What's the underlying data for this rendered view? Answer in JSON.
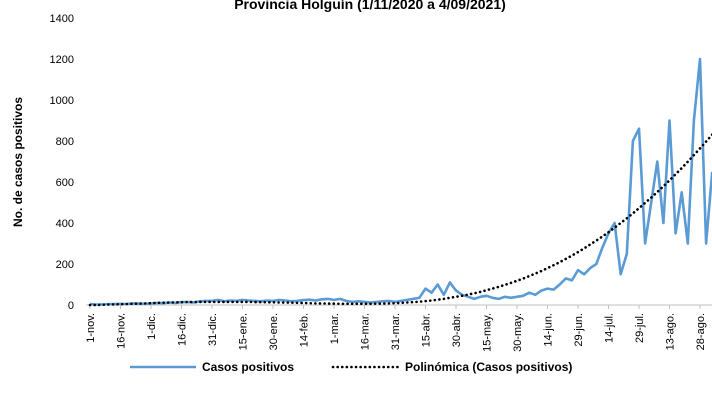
{
  "chart_data": {
    "type": "line",
    "title": "Provincia Holguín (1/11/2020 a 4/09/2021)",
    "y_label": "No. de casos positivos",
    "categories": [
      "1-nov.",
      null,
      null,
      null,
      null,
      "16-nov.",
      null,
      null,
      null,
      null,
      "1-dic.",
      null,
      null,
      null,
      null,
      "16-dic.",
      null,
      null,
      null,
      null,
      "31-dic.",
      null,
      null,
      null,
      null,
      "15-ene.",
      null,
      null,
      null,
      null,
      "30-ene.",
      null,
      null,
      null,
      null,
      "14-feb.",
      null,
      null,
      null,
      null,
      "1-mar.",
      null,
      null,
      null,
      null,
      "16-mar.",
      null,
      null,
      null,
      null,
      "31-mar.",
      null,
      null,
      null,
      null,
      "15-abr.",
      null,
      null,
      null,
      null,
      "30-abr.",
      null,
      null,
      null,
      null,
      "15-may.",
      null,
      null,
      null,
      null,
      "30-may.",
      null,
      null,
      null,
      null,
      "14-jun.",
      null,
      null,
      null,
      null,
      "29-jun.",
      null,
      null,
      null,
      null,
      "14-jul.",
      null,
      null,
      null,
      null,
      "29-jul.",
      null,
      null,
      null,
      null,
      "13-ago.",
      null,
      null,
      null,
      null,
      "28-ago.",
      null,
      null
    ],
    "series": [
      {
        "name": "Casos positivos",
        "color": "#5b9bd5",
        "style": "solid",
        "values": [
          5,
          2,
          3,
          4,
          5,
          6,
          5,
          8,
          7,
          6,
          8,
          10,
          9,
          12,
          10,
          14,
          15,
          12,
          18,
          20,
          20,
          25,
          18,
          22,
          20,
          25,
          22,
          20,
          18,
          22,
          20,
          25,
          22,
          18,
          20,
          24,
          26,
          22,
          28,
          30,
          25,
          30,
          20,
          15,
          18,
          15,
          12,
          15,
          18,
          20,
          15,
          20,
          25,
          30,
          35,
          80,
          60,
          100,
          50,
          110,
          70,
          50,
          40,
          30,
          40,
          45,
          35,
          30,
          40,
          35,
          40,
          45,
          60,
          50,
          70,
          80,
          75,
          100,
          130,
          120,
          170,
          150,
          180,
          200,
          280,
          350,
          400,
          150,
          250,
          800,
          860,
          300,
          500,
          700,
          400,
          900,
          350,
          550,
          300,
          900,
          1200,
          300,
          650
        ]
      },
      {
        "name": "Polinómica (Casos positivos)",
        "color": "#000000",
        "style": "dotted",
        "values": [
          0,
          0,
          1,
          2,
          3,
          4,
          5,
          6,
          7,
          8,
          9,
          10,
          11,
          12,
          13,
          13,
          14,
          14,
          15,
          15,
          15,
          15,
          15,
          15,
          15,
          15,
          15,
          14,
          14,
          13,
          13,
          12,
          12,
          11,
          10,
          10,
          9,
          8,
          8,
          7,
          7,
          6,
          6,
          6,
          6,
          6,
          6,
          7,
          7,
          8,
          9,
          10,
          12,
          14,
          16,
          19,
          22,
          26,
          30,
          35,
          40,
          45,
          51,
          57,
          64,
          72,
          80,
          89,
          98,
          108,
          118,
          129,
          141,
          153,
          166,
          180,
          194,
          209,
          225,
          241,
          258,
          276,
          295,
          314,
          334,
          355,
          377,
          400,
          423,
          447,
          472,
          498,
          524,
          551,
          579,
          608,
          638,
          668,
          699,
          731,
          764,
          797,
          831
        ]
      }
    ],
    "ylim": [
      0,
      1400
    ],
    "yticks": [
      0,
      200,
      400,
      600,
      800,
      1000,
      1200,
      1400
    ],
    "grid": false,
    "legend": "bottom"
  }
}
